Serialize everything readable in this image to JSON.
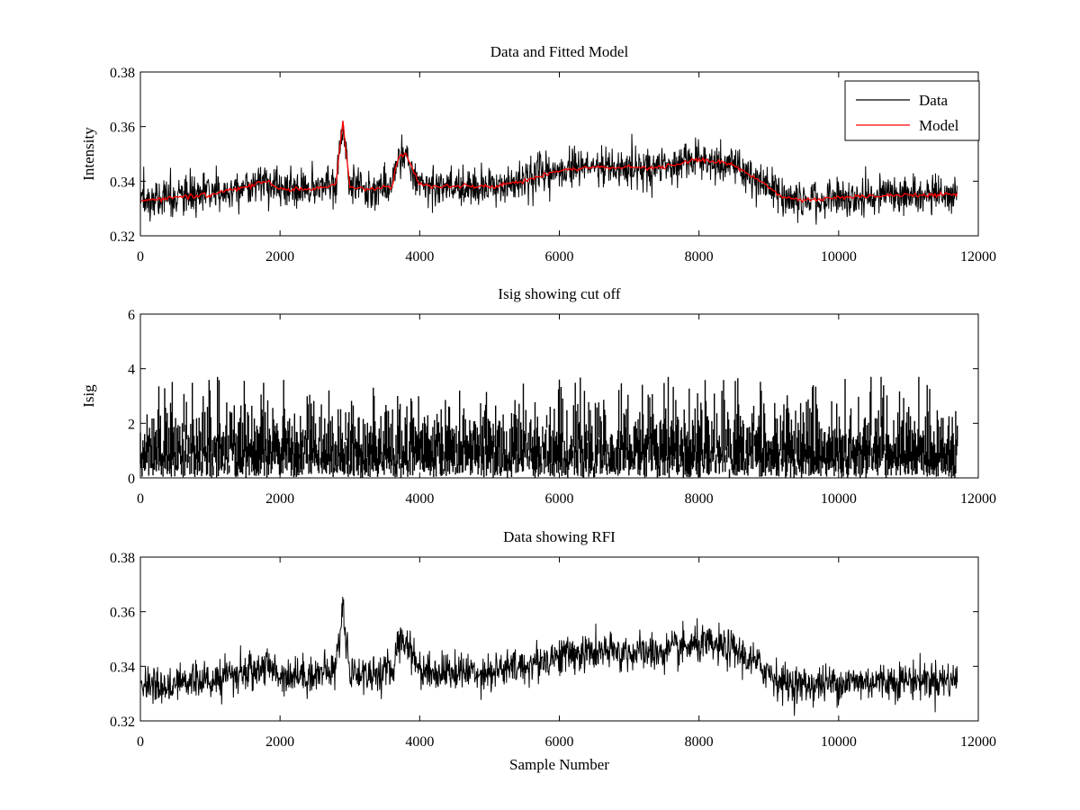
{
  "chart_data": [
    {
      "type": "line",
      "title": "Data and Fitted Model",
      "xlabel": "",
      "ylabel": "Intensity",
      "xlim": [
        0,
        12000
      ],
      "ylim": [
        0.32,
        0.38
      ],
      "xticks": [
        "0",
        "2000",
        "4000",
        "6000",
        "8000",
        "10000",
        "12000"
      ],
      "yticks": [
        "0.32",
        "0.34",
        "0.36",
        "0.38"
      ],
      "legend": {
        "placement": "top-right",
        "entries": [
          "Data",
          "Model"
        ]
      },
      "series": [
        {
          "name": "Data",
          "color": "#000000",
          "kind": "noisy",
          "noise": 0.0035,
          "x": [
            0,
            500,
            1000,
            1500,
            1800,
            2000,
            2500,
            2800,
            2900,
            3000,
            3300,
            3600,
            3700,
            3800,
            4000,
            4200,
            5000,
            5500,
            6000,
            6500,
            7000,
            7500,
            8000,
            8500,
            9000,
            9200,
            9500,
            10000,
            11000,
            11700
          ],
          "values": [
            0.333,
            0.334,
            0.335,
            0.338,
            0.34,
            0.337,
            0.337,
            0.339,
            0.362,
            0.338,
            0.337,
            0.338,
            0.349,
            0.35,
            0.339,
            0.338,
            0.338,
            0.34,
            0.344,
            0.345,
            0.345,
            0.345,
            0.348,
            0.346,
            0.338,
            0.334,
            0.333,
            0.334,
            0.335,
            0.335
          ]
        },
        {
          "name": "Model",
          "color": "#ff0000",
          "kind": "smooth",
          "x": [
            0,
            500,
            1000,
            1500,
            1800,
            2000,
            2500,
            2800,
            2900,
            3000,
            3300,
            3600,
            3700,
            3800,
            4000,
            4200,
            5000,
            5500,
            6000,
            6500,
            7000,
            7500,
            8000,
            8500,
            9000,
            9200,
            9500,
            10000,
            11000,
            11700
          ],
          "values": [
            0.333,
            0.334,
            0.335,
            0.338,
            0.34,
            0.337,
            0.337,
            0.339,
            0.362,
            0.338,
            0.337,
            0.338,
            0.349,
            0.35,
            0.339,
            0.338,
            0.338,
            0.34,
            0.344,
            0.345,
            0.345,
            0.345,
            0.348,
            0.346,
            0.338,
            0.334,
            0.333,
            0.334,
            0.335,
            0.335
          ]
        }
      ]
    },
    {
      "type": "line",
      "title": "Isig showing cut off",
      "xlabel": "",
      "ylabel": "Isig",
      "xlim": [
        0,
        12000
      ],
      "ylim": [
        0,
        6
      ],
      "xticks": [
        "0",
        "2000",
        "4000",
        "6000",
        "8000",
        "10000",
        "12000"
      ],
      "yticks": [
        "0",
        "2",
        "4",
        "6"
      ],
      "series": [
        {
          "name": "Isig",
          "color": "#000000",
          "kind": "spiky",
          "x": [
            0,
            11700
          ],
          "values": [
            0.8,
            0.8
          ],
          "spike_max": 3.7
        }
      ]
    },
    {
      "type": "line",
      "title": "Data showing RFI",
      "xlabel": "Sample Number",
      "ylabel": "",
      "xlim": [
        0,
        12000
      ],
      "ylim": [
        0.32,
        0.38
      ],
      "xticks": [
        "0",
        "2000",
        "4000",
        "6000",
        "8000",
        "10000",
        "12000"
      ],
      "yticks": [
        "0.32",
        "0.34",
        "0.36",
        "0.38"
      ],
      "series": [
        {
          "name": "Data",
          "color": "#000000",
          "kind": "noisy",
          "noise": 0.0035,
          "x": [
            0,
            500,
            1000,
            1500,
            1800,
            2000,
            2500,
            2800,
            2900,
            3000,
            3300,
            3600,
            3700,
            3800,
            4000,
            4200,
            5000,
            5500,
            6000,
            6500,
            7000,
            7500,
            8000,
            8500,
            9000,
            9200,
            9500,
            10000,
            11000,
            11700
          ],
          "values": [
            0.333,
            0.334,
            0.335,
            0.338,
            0.34,
            0.337,
            0.337,
            0.339,
            0.362,
            0.338,
            0.337,
            0.338,
            0.349,
            0.35,
            0.339,
            0.338,
            0.338,
            0.34,
            0.344,
            0.345,
            0.345,
            0.345,
            0.348,
            0.346,
            0.338,
            0.334,
            0.333,
            0.334,
            0.335,
            0.335
          ]
        }
      ]
    }
  ]
}
